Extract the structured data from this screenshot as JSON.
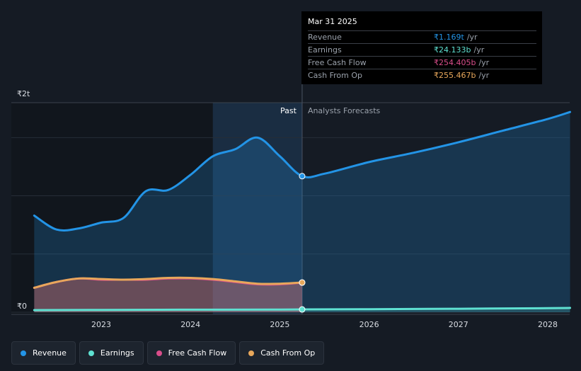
{
  "chart_data": {
    "type": "area",
    "y_axis": {
      "min": 0,
      "max": 1.8,
      "unit": "t",
      "top_label": "₹2t",
      "zero_label": "₹0"
    },
    "x_ticks": [
      {
        "label": "2023",
        "x": 2023.0
      },
      {
        "label": "2024",
        "x": 2024.0
      },
      {
        "label": "2025",
        "x": 2025.0
      },
      {
        "label": "2026",
        "x": 2026.0
      },
      {
        "label": "2027",
        "x": 2027.0
      },
      {
        "label": "2028",
        "x": 2028.0
      }
    ],
    "x_range": [
      2022.22,
      2028.25
    ],
    "past_end": 2025.25,
    "past_label": "Past",
    "forecast_label": "Analysts Forecasts",
    "highlight_range": [
      2024.25,
      2025.25
    ],
    "series": [
      {
        "name": "Revenue",
        "color": "#2394e6",
        "points": [
          [
            2022.25,
            0.83
          ],
          [
            2022.5,
            0.71
          ],
          [
            2022.75,
            0.72
          ],
          [
            2023.0,
            0.77
          ],
          [
            2023.25,
            0.81
          ],
          [
            2023.5,
            1.04
          ],
          [
            2023.75,
            1.05
          ],
          [
            2024.0,
            1.18
          ],
          [
            2024.25,
            1.34
          ],
          [
            2024.5,
            1.4
          ],
          [
            2024.75,
            1.5
          ],
          [
            2025.0,
            1.34
          ],
          [
            2025.25,
            1.169
          ],
          [
            2025.5,
            1.19
          ],
          [
            2026.0,
            1.29
          ],
          [
            2026.5,
            1.37
          ],
          [
            2027.0,
            1.46
          ],
          [
            2027.5,
            1.56
          ],
          [
            2028.0,
            1.66
          ],
          [
            2028.25,
            1.72
          ]
        ]
      },
      {
        "name": "Earnings",
        "color": "#5fe1d2",
        "points": [
          [
            2022.25,
            0.018
          ],
          [
            2023.0,
            0.02
          ],
          [
            2024.0,
            0.022
          ],
          [
            2025.0,
            0.023
          ],
          [
            2025.25,
            0.024133
          ],
          [
            2026.0,
            0.026
          ],
          [
            2027.0,
            0.03
          ],
          [
            2028.0,
            0.035
          ],
          [
            2028.25,
            0.037
          ]
        ]
      },
      {
        "name": "Free Cash Flow",
        "color": "#d94d8a",
        "points": [
          [
            2022.25,
            0.21
          ],
          [
            2022.5,
            0.26
          ],
          [
            2022.75,
            0.29
          ],
          [
            2023.0,
            0.28
          ],
          [
            2023.25,
            0.28
          ],
          [
            2023.5,
            0.28
          ],
          [
            2023.75,
            0.29
          ],
          [
            2024.0,
            0.29
          ],
          [
            2024.25,
            0.28
          ],
          [
            2024.5,
            0.26
          ],
          [
            2024.75,
            0.24
          ],
          [
            2025.0,
            0.24
          ],
          [
            2025.25,
            0.254405
          ]
        ]
      },
      {
        "name": "Cash From Op",
        "color": "#e8a75b",
        "points": [
          [
            2022.25,
            0.21
          ],
          [
            2022.5,
            0.26
          ],
          [
            2022.75,
            0.29
          ],
          [
            2023.0,
            0.285
          ],
          [
            2023.25,
            0.28
          ],
          [
            2023.5,
            0.285
          ],
          [
            2023.75,
            0.295
          ],
          [
            2024.0,
            0.295
          ],
          [
            2024.25,
            0.285
          ],
          [
            2024.5,
            0.265
          ],
          [
            2024.75,
            0.245
          ],
          [
            2025.0,
            0.245
          ],
          [
            2025.25,
            0.255467
          ]
        ]
      }
    ]
  },
  "tooltip": {
    "date": "Mar 31 2025",
    "rows": [
      {
        "name": "Revenue",
        "value": "₹1.169t",
        "unit": "/yr",
        "color": "#2394e6"
      },
      {
        "name": "Earnings",
        "value": "₹24.133b",
        "unit": "/yr",
        "color": "#5fe1d2"
      },
      {
        "name": "Free Cash Flow",
        "value": "₹254.405b",
        "unit": "/yr",
        "color": "#d94d8a"
      },
      {
        "name": "Cash From Op",
        "value": "₹255.467b",
        "unit": "/yr",
        "color": "#e8a75b"
      }
    ]
  },
  "legend": [
    {
      "label": "Revenue",
      "color": "#2394e6"
    },
    {
      "label": "Earnings",
      "color": "#5fe1d2"
    },
    {
      "label": "Free Cash Flow",
      "color": "#d94d8a"
    },
    {
      "label": "Cash From Op",
      "color": "#e8a75b"
    }
  ]
}
